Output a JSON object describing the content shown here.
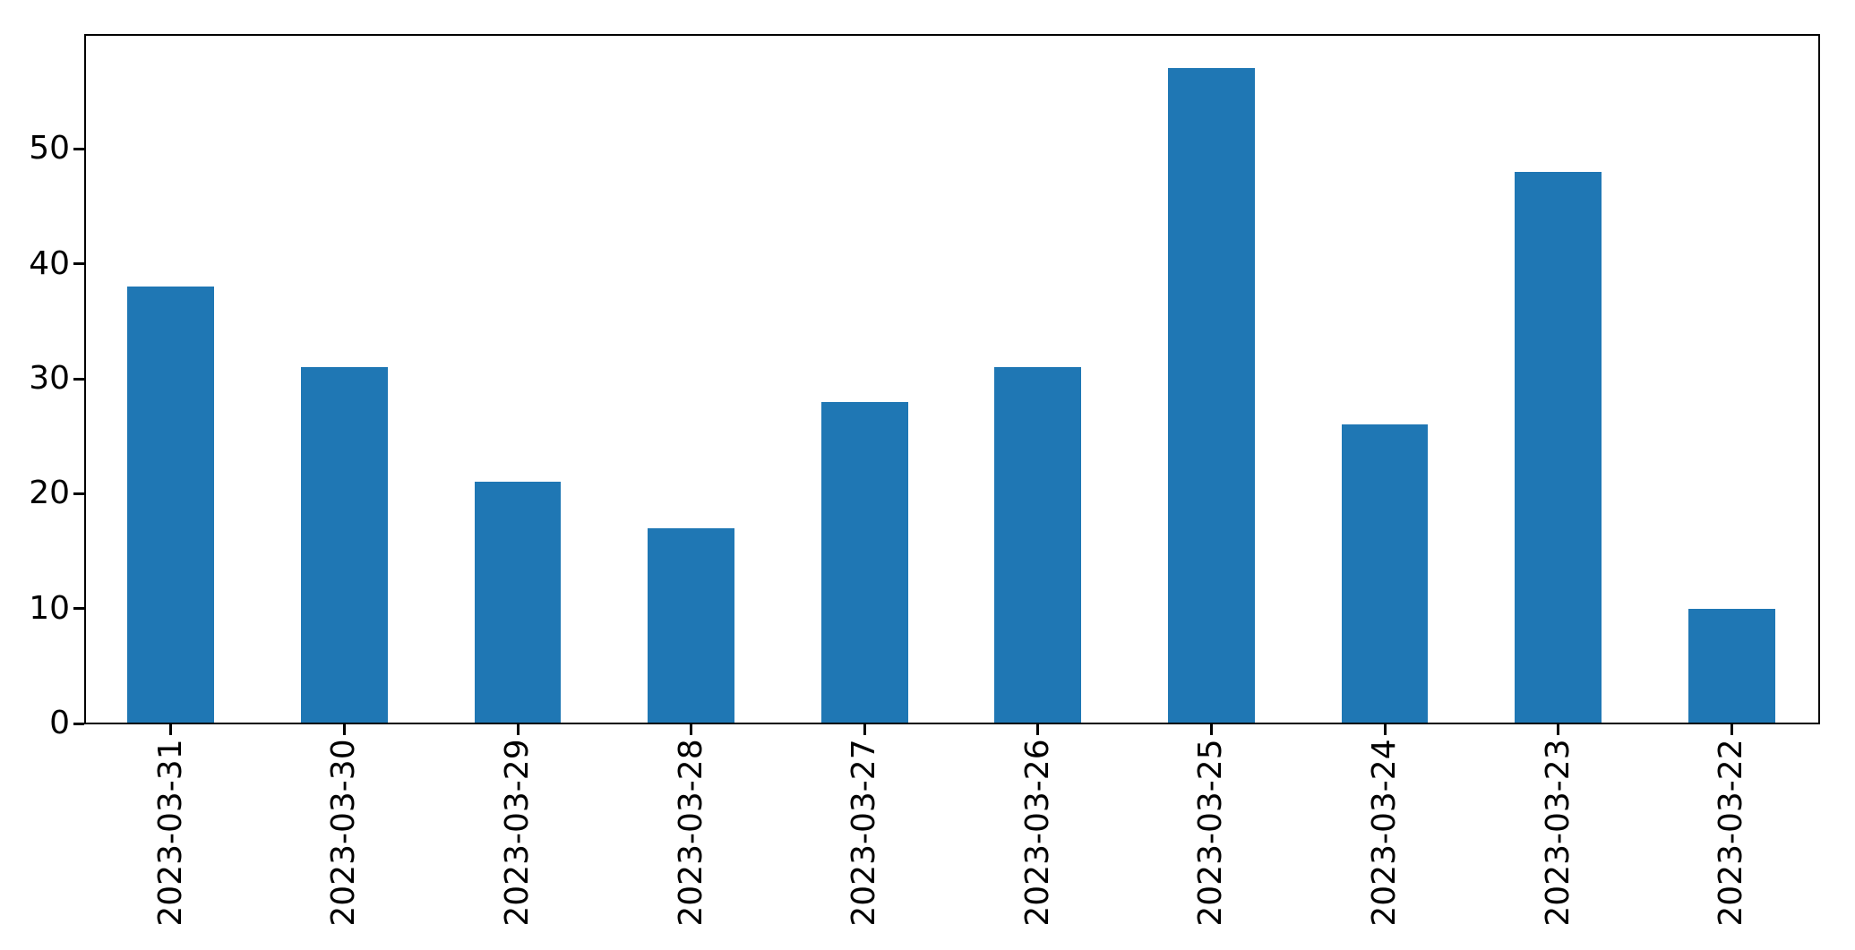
{
  "figure": {
    "background_color": "#ffffff",
    "spine_color": "#000000",
    "tick_label_color": "#000000"
  },
  "chart_data": {
    "type": "bar",
    "title": "",
    "xlabel": "",
    "ylabel": "",
    "categories": [
      "2023-03-31",
      "2023-03-30",
      "2023-03-29",
      "2023-03-28",
      "2023-03-27",
      "2023-03-26",
      "2023-03-25",
      "2023-03-24",
      "2023-03-23",
      "2023-03-22"
    ],
    "values": [
      38,
      31,
      21,
      17,
      28,
      31,
      57,
      26,
      48,
      10
    ],
    "bar_color": "#1f77b4",
    "ylim": [
      0,
      60
    ],
    "yticks": [
      0,
      10,
      20,
      30,
      40,
      50
    ],
    "x_tick_rotation": 90,
    "bar_width_fraction": 0.5,
    "grid": false,
    "legend_position": "none"
  }
}
